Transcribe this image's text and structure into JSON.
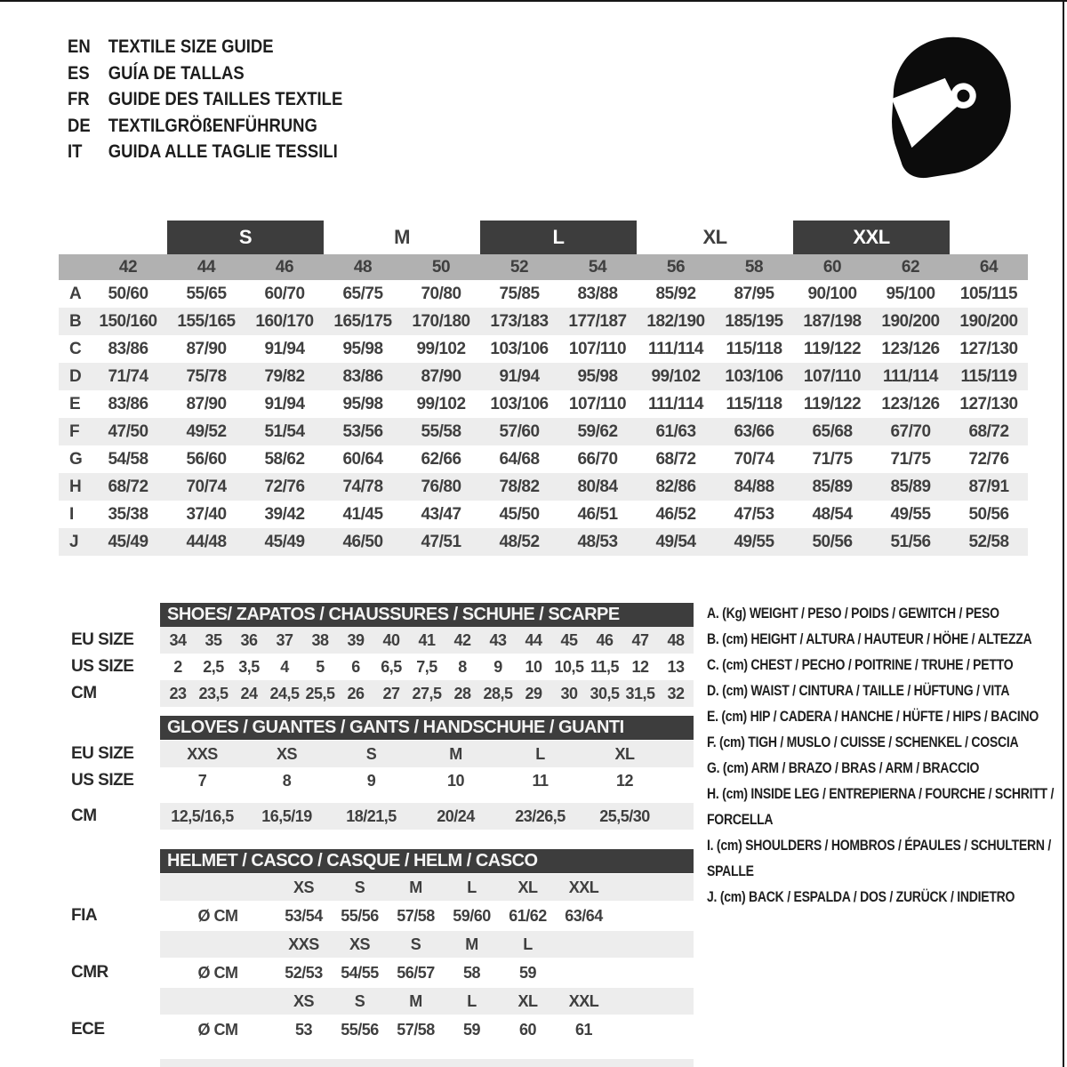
{
  "colors": {
    "dark_bar": "#3d3d3d",
    "size_band": "#b1b1b1",
    "row_stripe": "#ededed",
    "text": "#3f3f3f"
  },
  "icons": {
    "helmet": "full-face-racing-helmet"
  },
  "header": {
    "languages": [
      {
        "code": "EN",
        "title": "TEXTILE SIZE GUIDE"
      },
      {
        "code": "ES",
        "title": "GUÍA DE TALLAS"
      },
      {
        "code": "FR",
        "title": "GUIDE DES TAILLES TEXTILE"
      },
      {
        "code": "DE",
        "title": "TEXTILGRÖßENFÜHRUNG"
      },
      {
        "code": "IT",
        "title": "GUIDA ALLE TAGLIE TESSILI"
      }
    ]
  },
  "main_table": {
    "size_labels": [
      {
        "label": "S",
        "dark": true
      },
      {
        "label": "M",
        "dark": false
      },
      {
        "label": "L",
        "dark": true
      },
      {
        "label": "XL",
        "dark": false
      },
      {
        "label": "XXL",
        "dark": true
      }
    ],
    "numeric_sizes": [
      "42",
      "44",
      "46",
      "48",
      "50",
      "52",
      "54",
      "56",
      "58",
      "60",
      "62",
      "64"
    ],
    "rows": [
      {
        "letter": "A",
        "values": [
          "50/60",
          "55/65",
          "60/70",
          "65/75",
          "70/80",
          "75/85",
          "83/88",
          "85/92",
          "87/95",
          "90/100",
          "95/100",
          "105/115"
        ]
      },
      {
        "letter": "B",
        "values": [
          "150/160",
          "155/165",
          "160/170",
          "165/175",
          "170/180",
          "173/183",
          "177/187",
          "182/190",
          "185/195",
          "187/198",
          "190/200",
          "190/200"
        ]
      },
      {
        "letter": "C",
        "values": [
          "83/86",
          "87/90",
          "91/94",
          "95/98",
          "99/102",
          "103/106",
          "107/110",
          "111/114",
          "115/118",
          "119/122",
          "123/126",
          "127/130"
        ]
      },
      {
        "letter": "D",
        "values": [
          "71/74",
          "75/78",
          "79/82",
          "83/86",
          "87/90",
          "91/94",
          "95/98",
          "99/102",
          "103/106",
          "107/110",
          "111/114",
          "115/119"
        ]
      },
      {
        "letter": "E",
        "values": [
          "83/86",
          "87/90",
          "91/94",
          "95/98",
          "99/102",
          "103/106",
          "107/110",
          "111/114",
          "115/118",
          "119/122",
          "123/126",
          "127/130"
        ]
      },
      {
        "letter": "F",
        "values": [
          "47/50",
          "49/52",
          "51/54",
          "53/56",
          "55/58",
          "57/60",
          "59/62",
          "61/63",
          "63/66",
          "65/68",
          "67/70",
          "68/72"
        ]
      },
      {
        "letter": "G",
        "values": [
          "54/58",
          "56/60",
          "58/62",
          "60/64",
          "62/66",
          "64/68",
          "66/70",
          "68/72",
          "70/74",
          "71/75",
          "71/75",
          "72/76"
        ]
      },
      {
        "letter": "H",
        "values": [
          "68/72",
          "70/74",
          "72/76",
          "74/78",
          "76/80",
          "78/82",
          "80/84",
          "82/86",
          "84/88",
          "85/89",
          "85/89",
          "87/91"
        ]
      },
      {
        "letter": "I",
        "values": [
          "35/38",
          "37/40",
          "39/42",
          "41/45",
          "43/47",
          "45/50",
          "46/51",
          "46/52",
          "47/53",
          "48/54",
          "49/55",
          "50/56"
        ]
      },
      {
        "letter": "J",
        "values": [
          "45/49",
          "44/48",
          "45/49",
          "46/50",
          "47/51",
          "48/52",
          "48/53",
          "49/54",
          "49/55",
          "50/56",
          "51/56",
          "52/58"
        ]
      }
    ]
  },
  "shoes": {
    "title": "SHOES/ ZAPATOS / CHAUSSURES / SCHUHE / SCARPE",
    "rows": [
      {
        "label": "EU SIZE",
        "values": [
          "34",
          "35",
          "36",
          "37",
          "38",
          "39",
          "40",
          "41",
          "42",
          "43",
          "44",
          "45",
          "46",
          "47",
          "48"
        ]
      },
      {
        "label": "US SIZE",
        "values": [
          "2",
          "2,5",
          "3,5",
          "4",
          "5",
          "6",
          "6,5",
          "7,5",
          "8",
          "9",
          "10",
          "10,5",
          "11,5",
          "12",
          "13"
        ]
      },
      {
        "label": "CM",
        "values": [
          "23",
          "23,5",
          "24",
          "24,5",
          "25,5",
          "26",
          "27",
          "27,5",
          "28",
          "28,5",
          "29",
          "30",
          "30,5",
          "31,5",
          "32"
        ]
      }
    ]
  },
  "gloves": {
    "title": "GLOVES / GUANTES / GANTS / HANDSCHUHE / GUANTI",
    "rows": [
      {
        "label": "EU SIZE",
        "values": [
          "XXS",
          "XS",
          "S",
          "M",
          "L",
          "XL"
        ]
      },
      {
        "label": "US SIZE",
        "values": [
          "7",
          "8",
          "9",
          "10",
          "11",
          "12"
        ]
      },
      {
        "label": "CM",
        "values": [
          "12,5/16,5",
          "16,5/19",
          "18/21,5",
          "20/24",
          "23/26,5",
          "25,5/30"
        ]
      }
    ]
  },
  "helmet": {
    "title": "HELMET / CASCO / CASQUE / HELM / CASCO",
    "unit": "Ø CM",
    "standards": [
      {
        "label": "FIA",
        "sizes": [
          "XS",
          "S",
          "M",
          "L",
          "XL",
          "XXL"
        ],
        "values": [
          "53/54",
          "55/56",
          "57/58",
          "59/60",
          "61/62",
          "63/64"
        ]
      },
      {
        "label": "CMR",
        "sizes": [
          "XXS",
          "XS",
          "S",
          "M",
          "L",
          ""
        ],
        "values": [
          "52/53",
          "54/55",
          "56/57",
          "58",
          "59",
          ""
        ]
      },
      {
        "label": "ECE",
        "sizes": [
          "XS",
          "S",
          "M",
          "L",
          "XL",
          "XXL"
        ],
        "values": [
          "53",
          "55/56",
          "57/58",
          "59",
          "60",
          "61"
        ]
      }
    ]
  },
  "legend": {
    "items": [
      {
        "key": "A.",
        "unit": "(Kg)",
        "text": "WEIGHT / PESO / POIDS / GEWITCH / PESO"
      },
      {
        "key": "B.",
        "unit": "(cm)",
        "text": "HEIGHT / ALTURA / HAUTEUR / HÖHE / ALTEZZA"
      },
      {
        "key": "C.",
        "unit": "(cm)",
        "text": "CHEST / PECHO / POITRINE / TRUHE / PETTO"
      },
      {
        "key": "D.",
        "unit": "(cm)",
        "text": "WAIST / CINTURA / TAILLE / HÜFTUNG / VITA"
      },
      {
        "key": "E.",
        "unit": "(cm)",
        "text": "HIP / CADERA / HANCHE / HÜFTE / HIPS / BACINO"
      },
      {
        "key": "F.",
        "unit": "(cm)",
        "text": "TIGH / MUSLO / CUISSE / SCHENKEL / COSCIA"
      },
      {
        "key": "G.",
        "unit": "(cm)",
        "text": "ARM / BRAZO / BRAS / ARM / BRACCIO"
      },
      {
        "key": "H.",
        "unit": "(cm)",
        "text": "INSIDE LEG / ENTREPIERNA / FOURCHE / SCHRITT / FORCELLA"
      },
      {
        "key": "I.",
        "unit": "(cm)",
        "text": "SHOULDERS / HOMBROS / ÉPAULES / SCHULTERN / SPALLE"
      },
      {
        "key": "J.",
        "unit": "(cm)",
        "text": "BACK / ESPALDA / DOS / ZURÜCK / INDIETRO"
      }
    ]
  }
}
